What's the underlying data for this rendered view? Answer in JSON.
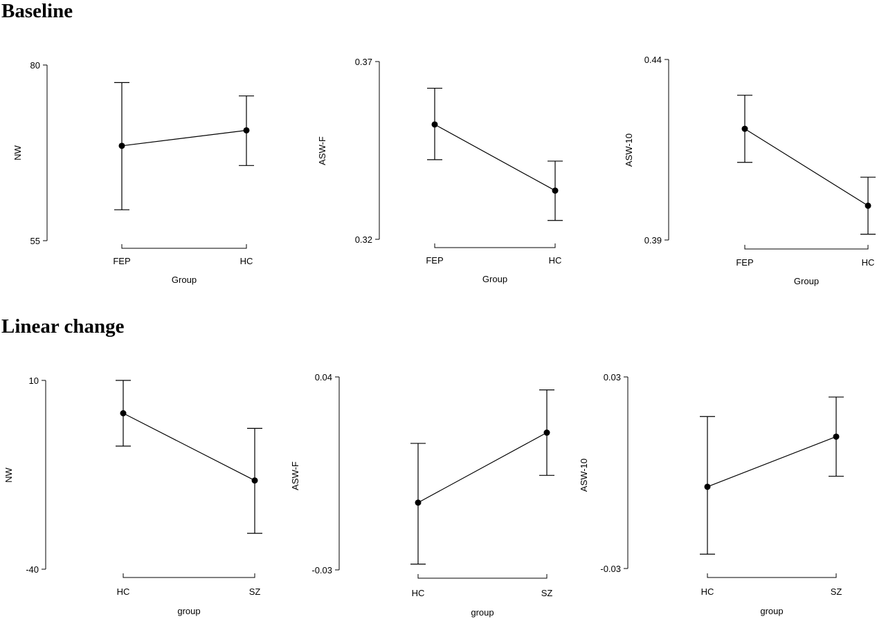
{
  "sections": {
    "baseline": "Baseline",
    "linear": "Linear change"
  },
  "chart_data": [
    {
      "type": "line",
      "section": "Baseline",
      "xlabel": "Group",
      "ylabel": "NW",
      "categories": [
        "FEP",
        "HC"
      ],
      "yticks": [
        "80",
        "55"
      ],
      "ylim": [
        55,
        80
      ],
      "points": [
        {
          "x": "FEP",
          "y": 68.5,
          "lower": 59.4,
          "upper": 77.5
        },
        {
          "x": "HC",
          "y": 70.7,
          "upper": 75.6,
          "lower": 65.7
        }
      ]
    },
    {
      "type": "line",
      "section": "Baseline",
      "xlabel": "Group",
      "ylabel": "ASW-F",
      "categories": [
        "FEP",
        "HC"
      ],
      "yticks": [
        "0.37",
        "0.32"
      ],
      "ylim": [
        0.32,
        0.37
      ],
      "points": [
        {
          "x": "FEP",
          "y": 0.3523,
          "lower": 0.3424,
          "upper": 0.3625
        },
        {
          "x": "HC",
          "y": 0.3337,
          "lower": 0.3253,
          "upper": 0.342
        }
      ]
    },
    {
      "type": "line",
      "section": "Baseline",
      "xlabel": "Group",
      "ylabel": "ASW-10",
      "categories": [
        "FEP",
        "HC"
      ],
      "yticks": [
        "0.44",
        "0.39"
      ],
      "ylim": [
        0.39,
        0.44
      ],
      "points": [
        {
          "x": "FEP",
          "y": 0.4208,
          "lower": 0.4115,
          "upper": 0.4301
        },
        {
          "x": "HC",
          "y": 0.3995,
          "lower": 0.3916,
          "upper": 0.4074
        }
      ]
    },
    {
      "type": "line",
      "section": "Linear change",
      "xlabel": "group",
      "ylabel": "NW",
      "categories": [
        "HC",
        "SZ"
      ],
      "yticks": [
        "10",
        "-40"
      ],
      "ylim": [
        -40,
        10
      ],
      "points": [
        {
          "x": "HC",
          "y": 1.3,
          "lower": -7.4,
          "upper": 10.0
        },
        {
          "x": "SZ",
          "y": -16.5,
          "lower": -30.5,
          "upper": -2.7
        }
      ]
    },
    {
      "type": "line",
      "section": "Linear change",
      "xlabel": "group",
      "ylabel": "ASW-F",
      "categories": [
        "HC",
        "SZ"
      ],
      "yticks": [
        "0.04",
        "-0.03"
      ],
      "ylim": [
        -0.03,
        0.04
      ],
      "points": [
        {
          "x": "HC",
          "y": -0.0056,
          "lower": -0.0279,
          "upper": 0.0159
        },
        {
          "x": "SZ",
          "y": 0.0198,
          "lower": 0.0043,
          "upper": 0.0353
        }
      ]
    },
    {
      "type": "line",
      "section": "Linear change",
      "xlabel": "group",
      "ylabel": "ASW-10",
      "categories": [
        "HC",
        "SZ"
      ],
      "yticks": [
        "0.03",
        "-0.03"
      ],
      "ylim": [
        -0.03,
        0.03
      ],
      "points": [
        {
          "x": "HC",
          "y": -0.0044,
          "lower": -0.0255,
          "upper": 0.0176
        },
        {
          "x": "SZ",
          "y": 0.0113,
          "lower": -0.0011,
          "upper": 0.0237
        }
      ]
    }
  ]
}
